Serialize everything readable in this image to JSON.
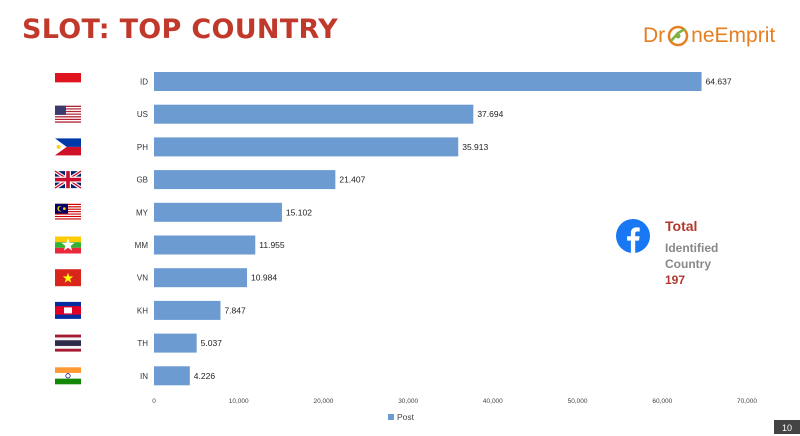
{
  "slide": {
    "title": "SLOT: TOP COUNTRY",
    "page_number": "10"
  },
  "logo": {
    "text_left": "Dr",
    "text_right": "neEmprit"
  },
  "total_box": {
    "title": "Total",
    "line1": "Identified",
    "line2": "Country",
    "count": "197",
    "icon": "facebook-icon"
  },
  "colors": {
    "bar": "#6b9bd1",
    "title": "#c0392b",
    "accent": "#b03a2e",
    "facebook": "#1877f2"
  },
  "chart_data": {
    "type": "bar",
    "orientation": "horizontal",
    "categories": [
      "ID",
      "US",
      "PH",
      "GB",
      "MY",
      "MM",
      "VN",
      "KH",
      "TH",
      "IN"
    ],
    "flags": [
      "indonesia",
      "united-states",
      "philippines",
      "united-kingdom",
      "malaysia",
      "myanmar",
      "vietnam",
      "cambodia",
      "thailand",
      "india"
    ],
    "series": [
      {
        "name": "Post",
        "values": [
          64637,
          37694,
          35913,
          21407,
          15102,
          11955,
          10984,
          7847,
          5037,
          4226
        ]
      }
    ],
    "value_labels": [
      "64.637",
      "37.694",
      "35.913",
      "21.407",
      "15.102",
      "11.955",
      "10.984",
      "7.847",
      "5.037",
      "4.226"
    ],
    "xlim": [
      0,
      70000
    ],
    "xticks": [
      0,
      10000,
      20000,
      30000,
      40000,
      50000,
      60000,
      70000
    ],
    "xtick_labels": [
      "0",
      "10,000",
      "20,000",
      "30,000",
      "40,000",
      "50,000",
      "60,000",
      "70,000"
    ],
    "grid": false,
    "legend": "bottom"
  }
}
